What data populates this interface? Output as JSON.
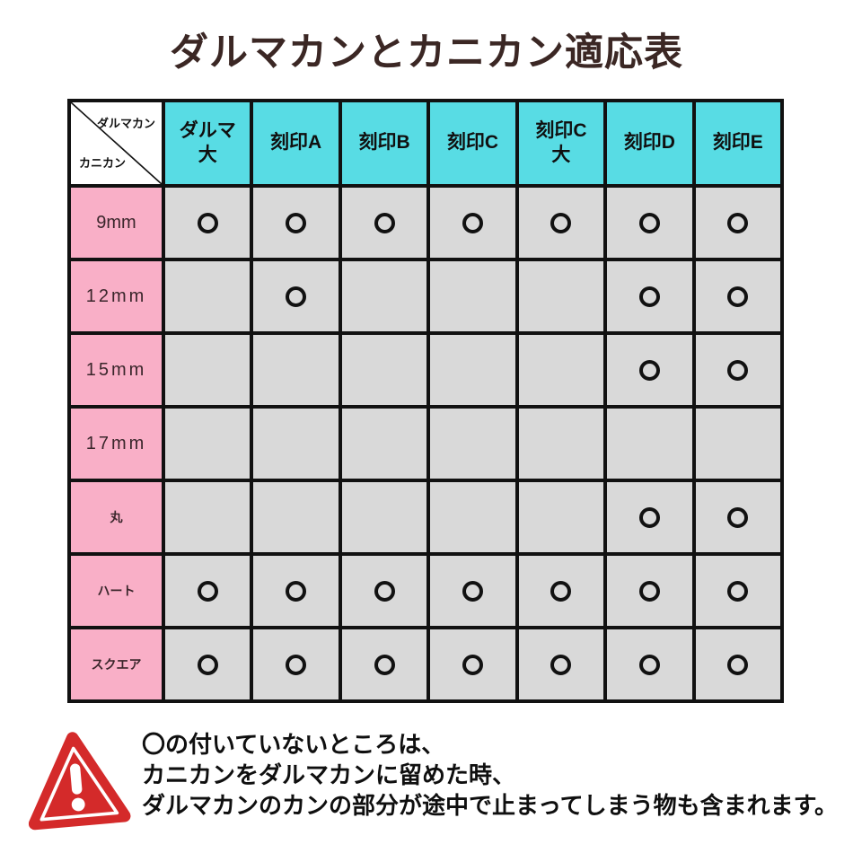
{
  "title": "ダルマカンとカニカン適応表",
  "colors": {
    "title_text": "#3b2724",
    "header_cell": "#58dce4",
    "row_header_cell": "#f9afc7",
    "data_cell": "#d9d9d9",
    "grid_line": "#111111",
    "mark": "#111111",
    "warning_red": "#d42a2a",
    "note_text": "#0f0f0f"
  },
  "table": {
    "corner": {
      "top_right_label": "ダルマカン",
      "bottom_left_label": "カニカン"
    },
    "column_headers": [
      {
        "lines": [
          "ダルマ",
          "大"
        ]
      },
      {
        "lines": [
          "刻印A"
        ]
      },
      {
        "lines": [
          "刻印B"
        ]
      },
      {
        "lines": [
          "刻印C"
        ]
      },
      {
        "lines": [
          "刻印C",
          "大"
        ]
      },
      {
        "lines": [
          "刻印D"
        ]
      },
      {
        "lines": [
          "刻印E"
        ]
      }
    ],
    "row_headers": [
      "9mm",
      "12mm",
      "15mm",
      "17mm",
      "丸",
      "ハート",
      "スクエア"
    ],
    "marks": [
      [
        1,
        1,
        1,
        1,
        1,
        1,
        1
      ],
      [
        0,
        1,
        0,
        0,
        0,
        1,
        1
      ],
      [
        0,
        0,
        0,
        0,
        0,
        1,
        1
      ],
      [
        0,
        0,
        0,
        0,
        0,
        0,
        0
      ],
      [
        0,
        0,
        0,
        0,
        0,
        1,
        1
      ],
      [
        1,
        1,
        1,
        1,
        1,
        1,
        1
      ],
      [
        1,
        1,
        1,
        1,
        1,
        1,
        1
      ]
    ],
    "mark_symbol": "〇"
  },
  "note": {
    "lines": [
      "〇の付いていないところは、",
      "カニカンをダルマカンに留めた時、",
      "ダルマカンのカンの部分が途中で止まってしまう物も含まれます。"
    ]
  },
  "chart_data": {
    "type": "table",
    "title": "ダルマカンとカニカン適応表",
    "column_axis_label": "ダルマカン",
    "row_axis_label": "カニカン",
    "columns": [
      "ダルマ大",
      "刻印A",
      "刻印B",
      "刻印C",
      "刻印C大",
      "刻印D",
      "刻印E"
    ],
    "rows": [
      "9mm",
      "12mm",
      "15mm",
      "17mm",
      "丸",
      "ハート",
      "スクエア"
    ],
    "mark_symbol": "〇",
    "values": [
      [
        "〇",
        "〇",
        "〇",
        "〇",
        "〇",
        "〇",
        "〇"
      ],
      [
        "",
        "〇",
        "",
        "",
        "",
        "〇",
        "〇"
      ],
      [
        "",
        "",
        "",
        "",
        "",
        "〇",
        "〇"
      ],
      [
        "",
        "",
        "",
        "",
        "",
        "",
        ""
      ],
      [
        "",
        "",
        "",
        "",
        "",
        "〇",
        "〇"
      ],
      [
        "〇",
        "〇",
        "〇",
        "〇",
        "〇",
        "〇",
        "〇"
      ],
      [
        "〇",
        "〇",
        "〇",
        "〇",
        "〇",
        "〇",
        "〇"
      ]
    ]
  }
}
